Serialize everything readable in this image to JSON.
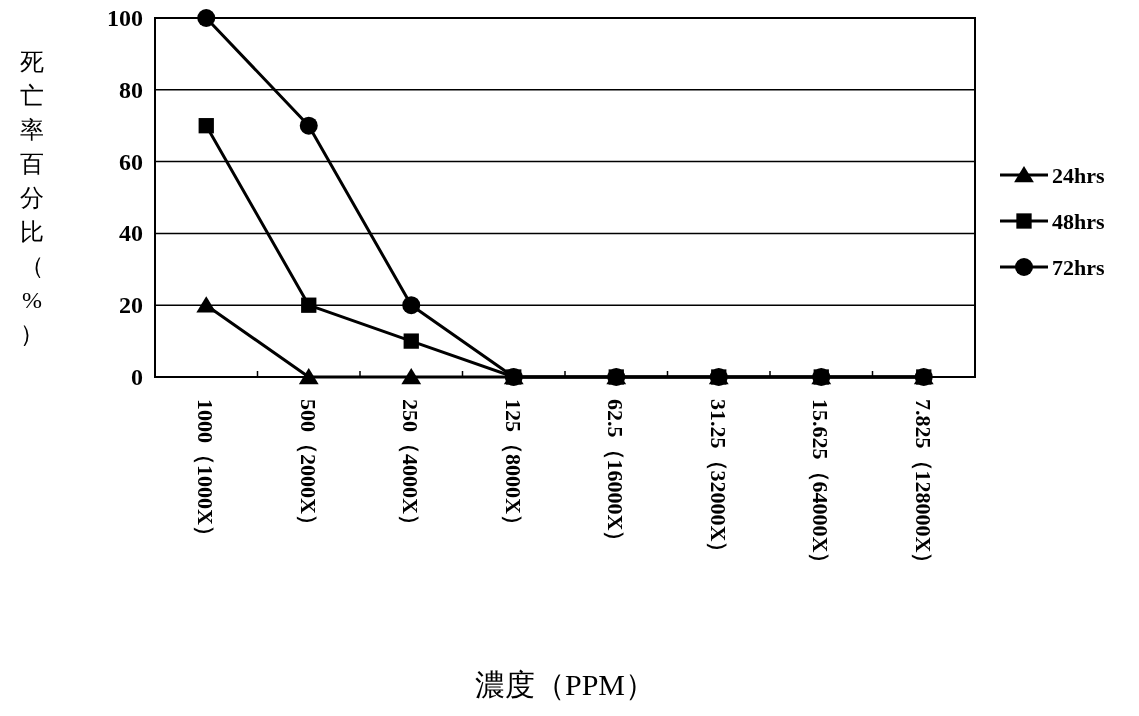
{
  "chart_data": {
    "type": "line",
    "xlabel": "濃度（PPM）",
    "ylabel": "死亡率百分比（%）",
    "categories": [
      "1000（1000X）",
      "500（2000X）",
      "250（4000X）",
      "125（8000X）",
      "62.5（16000X）",
      "31.25（32000X）",
      "15.625（64000X）",
      "7.825（128000X）"
    ],
    "series": [
      {
        "name": "24hrs",
        "color": "#000000",
        "marker": "triangle",
        "values": [
          20,
          0,
          0,
          0,
          0,
          0,
          0,
          0
        ]
      },
      {
        "name": "48hrs",
        "color": "#000000",
        "marker": "square",
        "values": [
          70,
          20,
          10,
          0,
          0,
          0,
          0,
          0
        ]
      },
      {
        "name": "72hrs",
        "color": "#000000",
        "marker": "circle",
        "values": [
          100,
          70,
          20,
          0,
          0,
          0,
          0,
          0
        ]
      }
    ],
    "ylim": [
      0,
      100
    ],
    "yticks": [
      0,
      20,
      40,
      60,
      80,
      100
    ],
    "grid": "y",
    "legend": "right",
    "line_style": "solid"
  }
}
